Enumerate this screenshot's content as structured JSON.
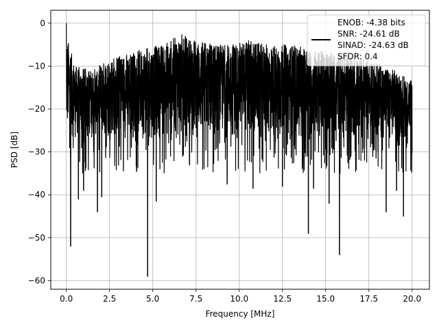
{
  "chart_data": {
    "type": "line",
    "title": "",
    "xlabel": "Frequency [MHz]",
    "ylabel": "PSD [dB]",
    "xlim": [
      -0.9,
      21.0
    ],
    "ylim": [
      -62.0,
      3.0
    ],
    "x_ticks": [
      0.0,
      2.5,
      5.0,
      7.5,
      10.0,
      12.5,
      15.0,
      17.5,
      20.0
    ],
    "x_tick_labels": [
      "0.0",
      "2.5",
      "5.0",
      "7.5",
      "10.0",
      "12.5",
      "15.0",
      "17.5",
      "20.0"
    ],
    "y_ticks": [
      0,
      -10,
      -20,
      -30,
      -40,
      -50,
      -60
    ],
    "y_tick_labels": [
      "0",
      "−10",
      "−20",
      "−30",
      "−40",
      "−50",
      "−60"
    ],
    "grid": true,
    "legend_position": "top-right",
    "legend_lines": [
      "ENOB: -4.38 bits",
      "SNR: -24.61 dB",
      "SINAD: -24.63 dB",
      "SFDR: 0.4"
    ],
    "series": [
      {
        "color": "#000000",
        "x_range": [
          0.0,
          20.0
        ],
        "peak_db": 0.0,
        "typical_band_db": [
          -27,
          -8
        ],
        "envelope": [
          {
            "x": 0.1,
            "y": -4
          },
          {
            "x": 0.5,
            "y": -10
          },
          {
            "x": 1.5,
            "y": -11
          },
          {
            "x": 2.5,
            "y": -8
          },
          {
            "x": 3.5,
            "y": -7
          },
          {
            "x": 4.5,
            "y": -6
          },
          {
            "x": 5.5,
            "y": -5
          },
          {
            "x": 6.7,
            "y": -2.5
          },
          {
            "x": 7.5,
            "y": -4
          },
          {
            "x": 9.0,
            "y": -5
          },
          {
            "x": 10.5,
            "y": -4
          },
          {
            "x": 11.5,
            "y": -5
          },
          {
            "x": 13.0,
            "y": -5
          },
          {
            "x": 14.0,
            "y": -6
          },
          {
            "x": 15.5,
            "y": -7
          },
          {
            "x": 17.0,
            "y": -8
          },
          {
            "x": 18.5,
            "y": -10
          },
          {
            "x": 20.0,
            "y": -13
          }
        ],
        "notable_dips": [
          {
            "x": 0.25,
            "y": -52
          },
          {
            "x": 0.7,
            "y": -41
          },
          {
            "x": 1.0,
            "y": -39
          },
          {
            "x": 1.8,
            "y": -44
          },
          {
            "x": 2.05,
            "y": -40.5
          },
          {
            "x": 4.7,
            "y": -59
          },
          {
            "x": 5.2,
            "y": -41.5
          },
          {
            "x": 9.3,
            "y": -37.5
          },
          {
            "x": 10.8,
            "y": -38.5
          },
          {
            "x": 12.5,
            "y": -38
          },
          {
            "x": 14.0,
            "y": -49
          },
          {
            "x": 14.3,
            "y": -38.5
          },
          {
            "x": 15.2,
            "y": -42
          },
          {
            "x": 15.8,
            "y": -54
          },
          {
            "x": 18.5,
            "y": -44
          },
          {
            "x": 19.5,
            "y": -45
          },
          {
            "x": 19.1,
            "y": -39
          }
        ]
      }
    ]
  }
}
